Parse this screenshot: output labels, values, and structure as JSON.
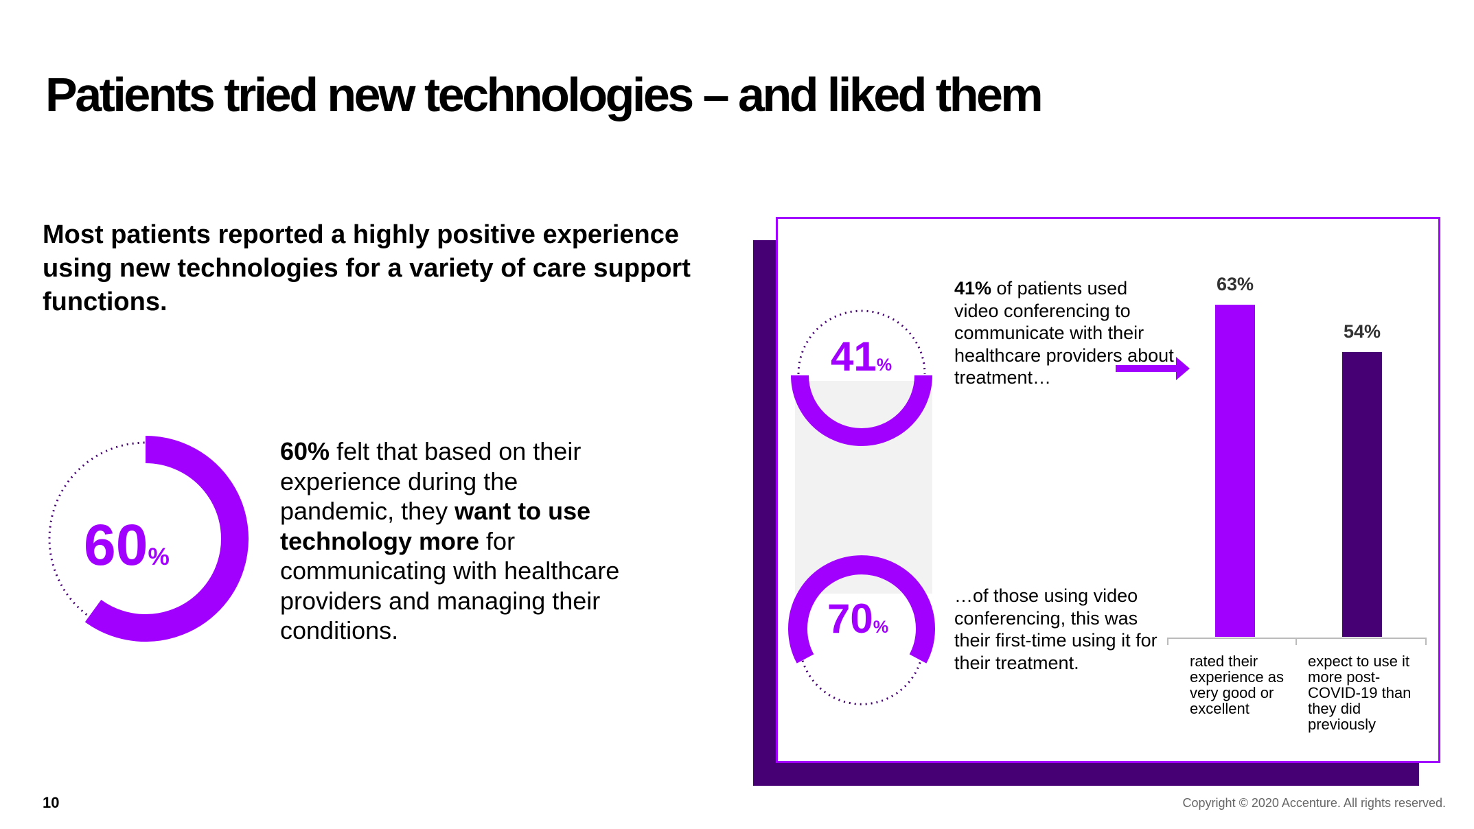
{
  "title": "Patients tried new technologies – and liked them",
  "subtitle": "Most patients reported a highly positive experience using new technologies for a variety of care support functions.",
  "stat60": {
    "value": "60",
    "suffix": "%",
    "fraction": 0.6,
    "text_bold1": "60%",
    "text1": " felt that based on their experience during the pandemic, they ",
    "text_bold2": "want to use technology more",
    "text2": " for communicating with healthcare providers and managing their conditions."
  },
  "stat41": {
    "value": "41",
    "suffix": "%",
    "text_bold": "41%",
    "text": " of patients used video conferencing to communicate with their healthcare providers about treatment…"
  },
  "stat70": {
    "value": "70",
    "suffix": "%",
    "text": "…of those using video conferencing, this was their first-time using it for their treatment."
  },
  "chart_data": {
    "type": "bar",
    "categories": [
      "rated their experience as very good or excellent",
      "expect to use it more post-COVID-19 than they did previously"
    ],
    "values": [
      63,
      54
    ],
    "value_labels": [
      "63%",
      "54%"
    ],
    "ylim": [
      0,
      63
    ],
    "colors": [
      "#A100FF",
      "#460073"
    ]
  },
  "colors": {
    "accent": "#A100FF",
    "dark_purple": "#460073",
    "panel_gray": "#F2F2F2"
  },
  "footer": {
    "page_number": "10",
    "copyright": "Copyright © 2020 Accenture. All rights reserved."
  }
}
